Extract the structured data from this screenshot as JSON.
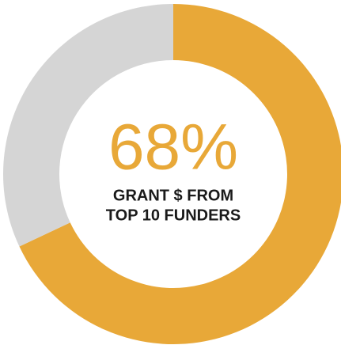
{
  "chart_data": {
    "type": "donut",
    "values": [
      68,
      32
    ],
    "value_labels": [
      "68%",
      null
    ],
    "colors": [
      "#e8a838",
      "#d5d5d5"
    ],
    "center_label_lines": [
      "GRANT $ FROM",
      "TOP 10 FUNDERS"
    ]
  }
}
